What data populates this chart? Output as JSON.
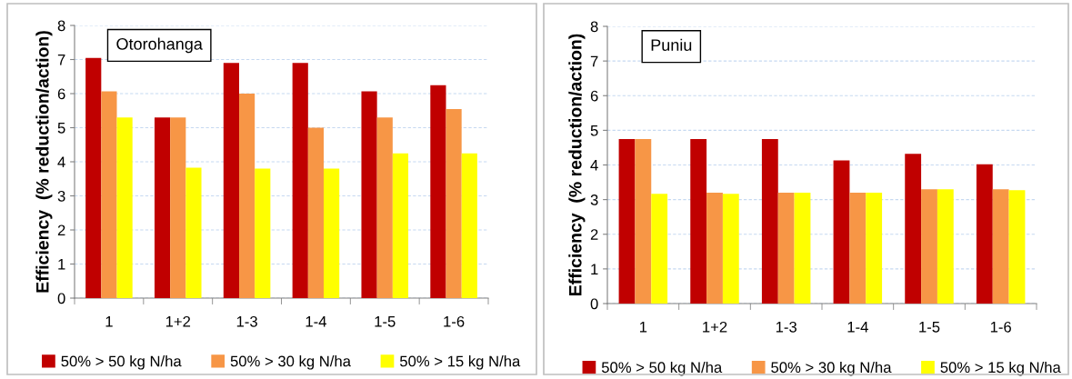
{
  "chart_data": [
    {
      "type": "bar",
      "title": "Otorohanga",
      "ylabel": "Efficiency  (% reduction/action)",
      "categories": [
        "1",
        "1+2",
        "1-3",
        "1-4",
        "1-5",
        "1-6"
      ],
      "series": [
        {
          "name": "50% > 50 kg N/ha",
          "color": "#c00000",
          "values": [
            7.05,
            5.3,
            6.9,
            6.9,
            6.07,
            6.25
          ]
        },
        {
          "name": "50% > 30 kg N/ha",
          "color": "#f79646",
          "values": [
            6.07,
            5.3,
            6.0,
            5.0,
            5.3,
            5.55
          ]
        },
        {
          "name": "50% > 15 kg N/ha",
          "color": "#ffff00",
          "values": [
            5.3,
            3.83,
            3.8,
            3.8,
            4.25,
            4.25
          ]
        }
      ],
      "ylim": [
        0,
        8
      ],
      "yticks": [
        0,
        1,
        2,
        3,
        4,
        5,
        6,
        7,
        8
      ],
      "grid": "y",
      "legend": "bottom"
    },
    {
      "type": "bar",
      "title": "Puniu",
      "ylabel": "Efficiency  (% reduction/action)",
      "categories": [
        "1",
        "1+2",
        "1-3",
        "1-4",
        "1-5",
        "1-6"
      ],
      "series": [
        {
          "name": "50% > 50 kg N/ha",
          "color": "#c00000",
          "values": [
            4.75,
            4.75,
            4.75,
            4.13,
            4.32,
            4.02
          ]
        },
        {
          "name": "50% > 30 kg N/ha",
          "color": "#f79646",
          "values": [
            4.75,
            3.2,
            3.2,
            3.2,
            3.3,
            3.3
          ]
        },
        {
          "name": "50% > 15 kg N/ha",
          "color": "#ffff00",
          "values": [
            3.17,
            3.17,
            3.2,
            3.2,
            3.3,
            3.27
          ]
        }
      ],
      "ylim": [
        0,
        8
      ],
      "yticks": [
        0,
        1,
        2,
        3,
        4,
        5,
        6,
        7,
        8
      ],
      "grid": "y",
      "legend": "bottom"
    }
  ]
}
